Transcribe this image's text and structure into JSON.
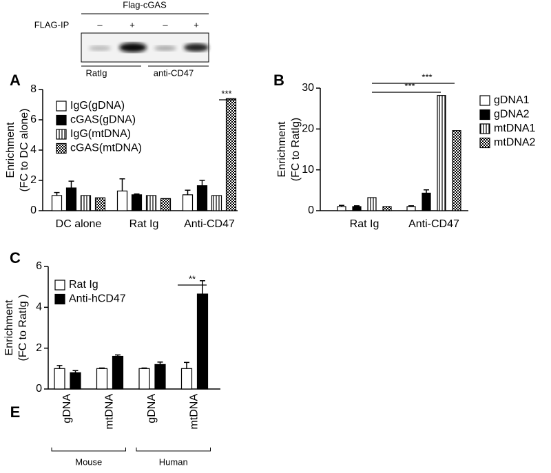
{
  "blot": {
    "title": "Flag-cGAS",
    "row_label": "FLAG-IP",
    "signs": [
      "–",
      "+",
      "–",
      "+"
    ],
    "groups": [
      "RatIg",
      "anti-CD47"
    ]
  },
  "chart_data": [
    {
      "type": "bar",
      "panel": "A",
      "ylabel": [
        "Enrichment",
        "(FC to DC alone)"
      ],
      "categories": [
        "DC alone",
        "Rat Ig",
        "Anti-CD47"
      ],
      "series": [
        {
          "name": "IgG(gDNA)",
          "color": "#ffffff",
          "values": [
            1.0,
            1.3,
            1.05
          ],
          "errors": [
            0.2,
            0.8,
            0.3
          ]
        },
        {
          "name": "cGAS(gDNA)",
          "color": "#000000",
          "values": [
            1.5,
            1.05,
            1.65
          ],
          "errors": [
            0.45,
            0.05,
            0.35
          ]
        },
        {
          "name": "IgG(mtDNA)",
          "color": "#ffffff",
          "hatch": "vertical",
          "values": [
            1.0,
            1.0,
            1.0
          ]
        },
        {
          "name": "cGAS(mtDNA)",
          "color": "#ffffff",
          "hatch": "checker",
          "values": [
            0.85,
            0.8,
            7.4
          ]
        }
      ],
      "ylim": [
        0,
        8
      ],
      "yticks": [
        0,
        2,
        4,
        6,
        8
      ],
      "annotations": [
        "***"
      ],
      "legend": "upper left"
    },
    {
      "type": "bar",
      "panel": "B",
      "ylabel": [
        "Enrichment",
        "(FC to RatIg)"
      ],
      "categories": [
        "Rat Ig",
        "Anti-CD47"
      ],
      "series": [
        {
          "name": "gDNA1",
          "color": "#ffffff",
          "values": [
            1.0,
            1.0
          ],
          "errors": [
            0.3,
            0.2
          ]
        },
        {
          "name": "gDNA2",
          "color": "#000000",
          "values": [
            1.0,
            4.3
          ],
          "errors": [
            0.2,
            0.8
          ]
        },
        {
          "name": "mtDNA1",
          "color": "#ffffff",
          "hatch": "vertical",
          "values": [
            3.2,
            28.2
          ]
        },
        {
          "name": "mtDNA2",
          "color": "#ffffff",
          "hatch": "checker",
          "values": [
            1.0,
            19.6
          ]
        }
      ],
      "ylim": [
        0,
        30
      ],
      "yticks": [
        0,
        10,
        20,
        30
      ],
      "annotations": [
        "***",
        "***"
      ],
      "legend": "outside right"
    },
    {
      "type": "bar",
      "panel": "C",
      "ylabel": [
        "Enrichment",
        "(FC to RatIg )"
      ],
      "categories": [
        "gDNA",
        "mtDNA",
        "gDNA",
        "mtDNA"
      ],
      "groups": [
        "Mouse",
        "Human"
      ],
      "series": [
        {
          "name": "Rat Ig",
          "color": "#ffffff",
          "values": [
            1.0,
            1.0,
            1.0,
            1.0
          ],
          "errors": [
            0.15,
            0.03,
            0.03,
            0.3
          ]
        },
        {
          "name": "Anti-hCD47",
          "color": "#000000",
          "values": [
            0.8,
            1.6,
            1.2,
            4.65
          ],
          "errors": [
            0.1,
            0.07,
            0.12,
            0.65
          ]
        }
      ],
      "ylim": [
        0,
        6
      ],
      "yticks": [
        0,
        2,
        4,
        6
      ],
      "annotations": [
        "**"
      ],
      "legend": "upper left"
    }
  ],
  "extra_label": "E"
}
